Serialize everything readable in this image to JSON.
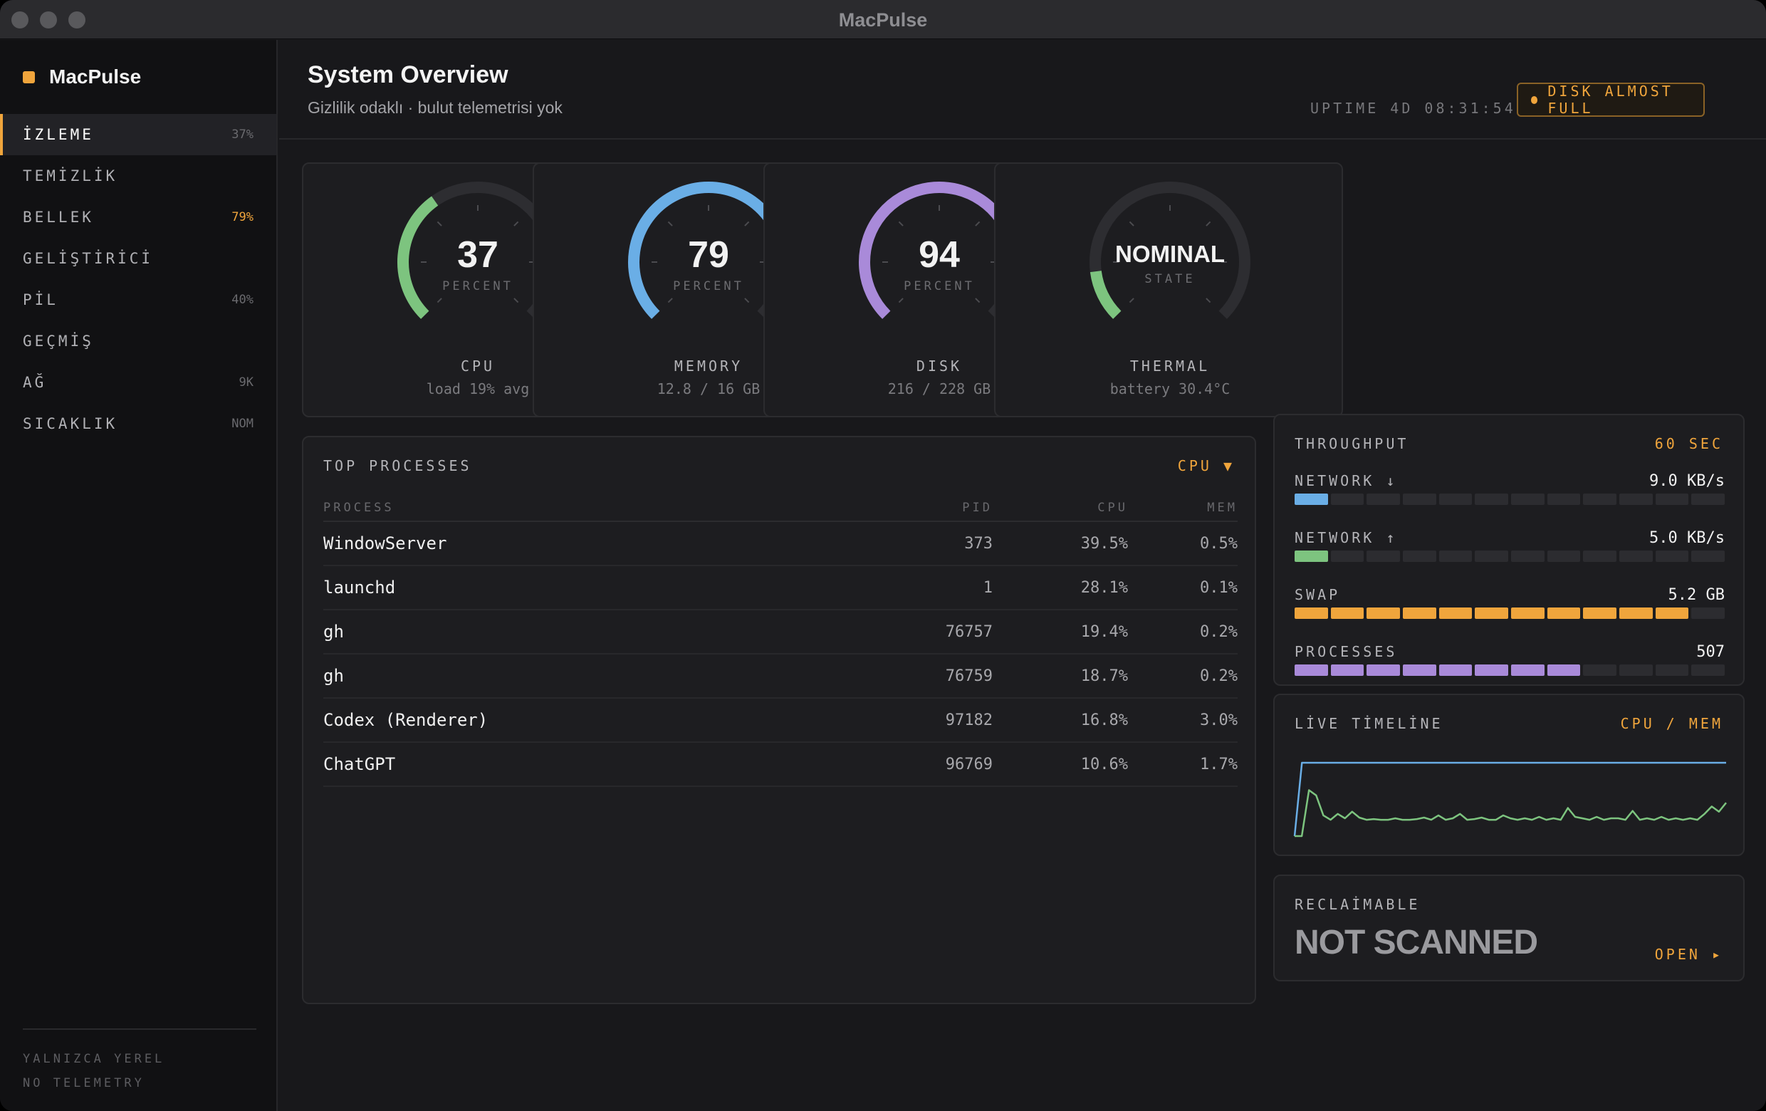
{
  "window": {
    "title": "MacPulse"
  },
  "sidebar": {
    "brand": "MacPulse",
    "items": [
      {
        "label": "İZLEME",
        "meta": "37%",
        "active": true,
        "highlight": false
      },
      {
        "label": "TEMİZLİK",
        "meta": "",
        "active": false,
        "highlight": false
      },
      {
        "label": "BELLEK",
        "meta": "79%",
        "active": false,
        "highlight": true
      },
      {
        "label": "GELİŞTİRİCİ",
        "meta": "",
        "active": false,
        "highlight": false
      },
      {
        "label": "PİL",
        "meta": "40%",
        "active": false,
        "highlight": false
      },
      {
        "label": "GEÇMİŞ",
        "meta": "",
        "active": false,
        "highlight": false
      },
      {
        "label": "AĞ",
        "meta": "9K",
        "active": false,
        "highlight": false
      },
      {
        "label": "SICAKLIK",
        "meta": "NOM",
        "active": false,
        "highlight": false
      }
    ],
    "footer": [
      "YALNIZCA YEREL",
      "NO TELEMETRY"
    ]
  },
  "header": {
    "title": "System Overview",
    "subtitle": "Gizlilik odaklı · bulut telemetrisi yok",
    "uptime": "UPTIME 4D 08:31:54",
    "alert": "DISK ALMOST FULL"
  },
  "gauges": [
    {
      "value": "37",
      "unit": "PERCENT",
      "name": "CPU",
      "detail": "load 19% avg",
      "fraction": 0.37,
      "color": "#7dc47f"
    },
    {
      "value": "79",
      "unit": "PERCENT",
      "name": "MEMORY",
      "detail": "12.8 / 16 GB",
      "fraction": 0.79,
      "color": "#6aaee6"
    },
    {
      "value": "94",
      "unit": "PERCENT",
      "name": "DISK",
      "detail": "216 / 228 GB",
      "fraction": 0.94,
      "color": "#a98ad9"
    },
    {
      "value": "NOMINAL",
      "unit": "STATE",
      "name": "THERMAL",
      "detail": "battery 30.4°C",
      "fraction": 0.14,
      "color": "#7dc47f"
    }
  ],
  "processes": {
    "title": "TOP PROCESSES",
    "sort": "CPU ▼",
    "columns": [
      "PROCESS",
      "PID",
      "CPU",
      "MEM"
    ],
    "rows": [
      {
        "name": "WindowServer",
        "pid": "373",
        "cpu": "39.5%",
        "mem": "0.5%"
      },
      {
        "name": "launchd",
        "pid": "1",
        "cpu": "28.1%",
        "mem": "0.1%"
      },
      {
        "name": "gh",
        "pid": "76757",
        "cpu": "19.4%",
        "mem": "0.2%"
      },
      {
        "name": "gh",
        "pid": "76759",
        "cpu": "18.7%",
        "mem": "0.2%"
      },
      {
        "name": "Codex (Renderer)",
        "pid": "97182",
        "cpu": "16.8%",
        "mem": "3.0%"
      },
      {
        "name": "ChatGPT",
        "pid": "96769",
        "cpu": "10.6%",
        "mem": "1.7%"
      }
    ]
  },
  "throughput": {
    "title": "THROUGHPUT",
    "badge": "60 SEC",
    "rows": [
      {
        "label": "NETWORK ↓",
        "value": "9.0 KB/s",
        "filled": 1,
        "color": "#6aaee6"
      },
      {
        "label": "NETWORK ↑",
        "value": "5.0 KB/s",
        "filled": 1,
        "color": "#7dc47f"
      },
      {
        "label": "SWAP",
        "value": "5.2 GB",
        "filled": 11,
        "color": "#f0a53c"
      },
      {
        "label": "PROCESSES",
        "value": "507",
        "filled": 8,
        "color": "#a98ad9"
      }
    ],
    "segments": 12
  },
  "timeline": {
    "title": "LİVE TİMELİNE",
    "badge": "CPU / MEM",
    "series": [
      {
        "name": "MEM",
        "color": "#6aaee6",
        "values": [
          0,
          99,
          99,
          99,
          99,
          99,
          99,
          99,
          99,
          99,
          99,
          99,
          99,
          99,
          99,
          99,
          99,
          99,
          99,
          99,
          99,
          99,
          99,
          99,
          99,
          99,
          99,
          99,
          99,
          99,
          99,
          99,
          99,
          99,
          99,
          99,
          99,
          99,
          99,
          99,
          99,
          99,
          99,
          99,
          99,
          99,
          99,
          99,
          99,
          99,
          99,
          99,
          99,
          99,
          99,
          99,
          99,
          99,
          99,
          99
        ]
      },
      {
        "name": "CPU",
        "color": "#7dc47f",
        "values": [
          0,
          0,
          62,
          55,
          28,
          22,
          30,
          24,
          33,
          25,
          22,
          23,
          22,
          22,
          24,
          22,
          22,
          23,
          25,
          22,
          28,
          22,
          24,
          30,
          22,
          23,
          25,
          22,
          22,
          28,
          24,
          22,
          24,
          22,
          26,
          22,
          24,
          22,
          38,
          26,
          24,
          22,
          26,
          22,
          24,
          24,
          22,
          34,
          22,
          24,
          22,
          26,
          22,
          24,
          22,
          24,
          22,
          30,
          40,
          33,
          45
        ]
      }
    ]
  },
  "reclaimable": {
    "title": "RECLAİMABLE",
    "value": "NOT SCANNED",
    "action": "OPEN ▸"
  },
  "colors": {
    "accent": "#f0a53c",
    "background": "#18181b",
    "card": "#1d1d20"
  }
}
